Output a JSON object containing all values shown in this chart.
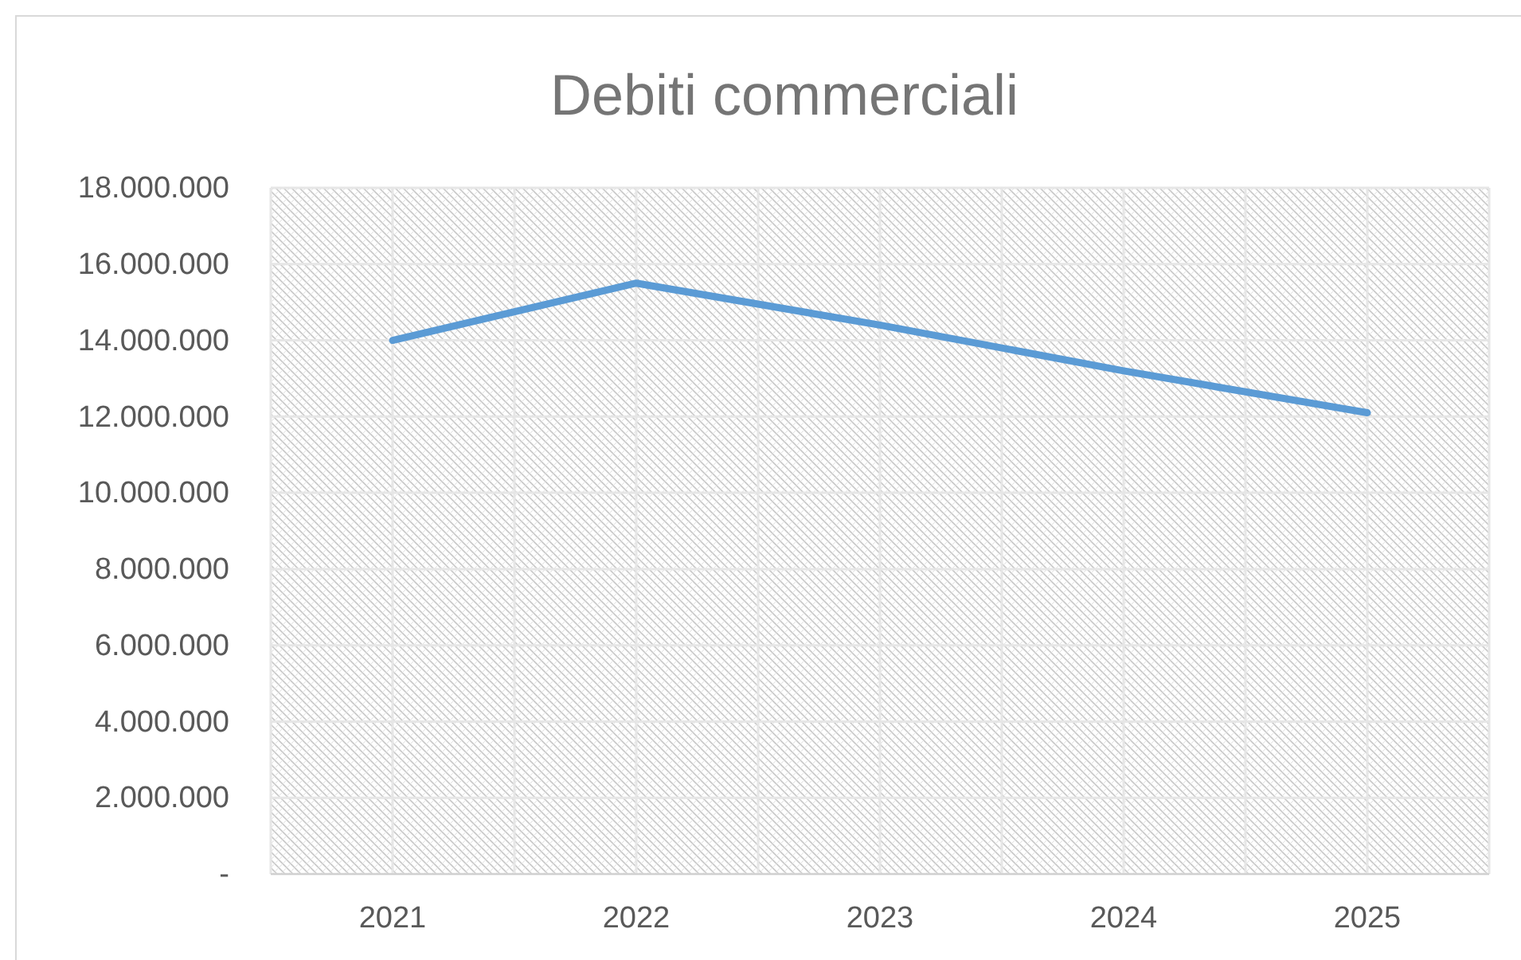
{
  "chart_data": {
    "type": "line",
    "title": "Debiti commerciali",
    "categories": [
      "2021",
      "2022",
      "2023",
      "2024",
      "2025"
    ],
    "series": [
      {
        "color": "#5b9bd5",
        "values": [
          14000000,
          15500000,
          14400000,
          13200000,
          12100000
        ]
      }
    ],
    "ylim": [
      0,
      18000000
    ],
    "yticks": [
      {
        "value": 0,
        "label": "-"
      },
      {
        "value": 2000000,
        "label": "2.000.000"
      },
      {
        "value": 4000000,
        "label": "4.000.000"
      },
      {
        "value": 6000000,
        "label": "6.000.000"
      },
      {
        "value": 8000000,
        "label": "8.000.000"
      },
      {
        "value": 10000000,
        "label": "10.000.000"
      },
      {
        "value": 12000000,
        "label": "12.000.000"
      },
      {
        "value": 14000000,
        "label": "14.000.000"
      },
      {
        "value": 16000000,
        "label": "16.000.000"
      },
      {
        "value": 18000000,
        "label": "18.000.000"
      }
    ],
    "grid": true,
    "marker": "none",
    "line_style": "solid"
  }
}
